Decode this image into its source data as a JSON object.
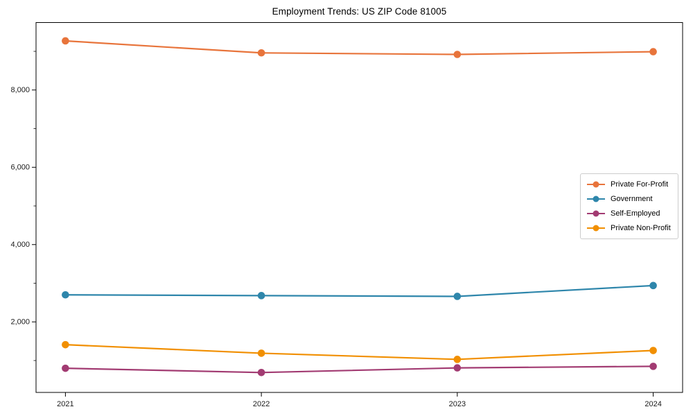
{
  "title": "Employment Trends: US ZIP Code 81005",
  "chart_data": {
    "type": "line",
    "title": "Employment Trends: US ZIP Code 81005",
    "xlabel": "",
    "ylabel": "",
    "grid": false,
    "legend_position": "middle-right",
    "x": [
      2021,
      2022,
      2023,
      2024
    ],
    "x_tick_labels": [
      "2021",
      "2022",
      "2023",
      "2024"
    ],
    "xlim": [
      2020.85,
      2024.15
    ],
    "ylim": [
      175,
      9745
    ],
    "y_major_ticks": [
      {
        "value": 2000,
        "label": "2,000"
      },
      {
        "value": 4000,
        "label": "4,000"
      },
      {
        "value": 6000,
        "label": "6,000"
      },
      {
        "value": 8000,
        "label": "8,000"
      }
    ],
    "y_minor_ticks": [
      1000,
      3000,
      5000,
      7000,
      9000
    ],
    "series": [
      {
        "name": "Private For-Profit",
        "color": "#E8743B",
        "values": [
          9270,
          8960,
          8920,
          8990
        ]
      },
      {
        "name": "Government",
        "color": "#2E86AB",
        "values": [
          2700,
          2680,
          2660,
          2940
        ]
      },
      {
        "name": "Self-Employed",
        "color": "#A23B72",
        "values": [
          800,
          690,
          810,
          850
        ]
      },
      {
        "name": "Private Non-Profit",
        "color": "#F18F01",
        "values": [
          1410,
          1190,
          1030,
          1260
        ]
      }
    ]
  },
  "style": {
    "axis_color": "#000000",
    "tick_label_color": "#1a1a1a",
    "legend_border_color": "#cccccc",
    "background": "#ffffff"
  }
}
